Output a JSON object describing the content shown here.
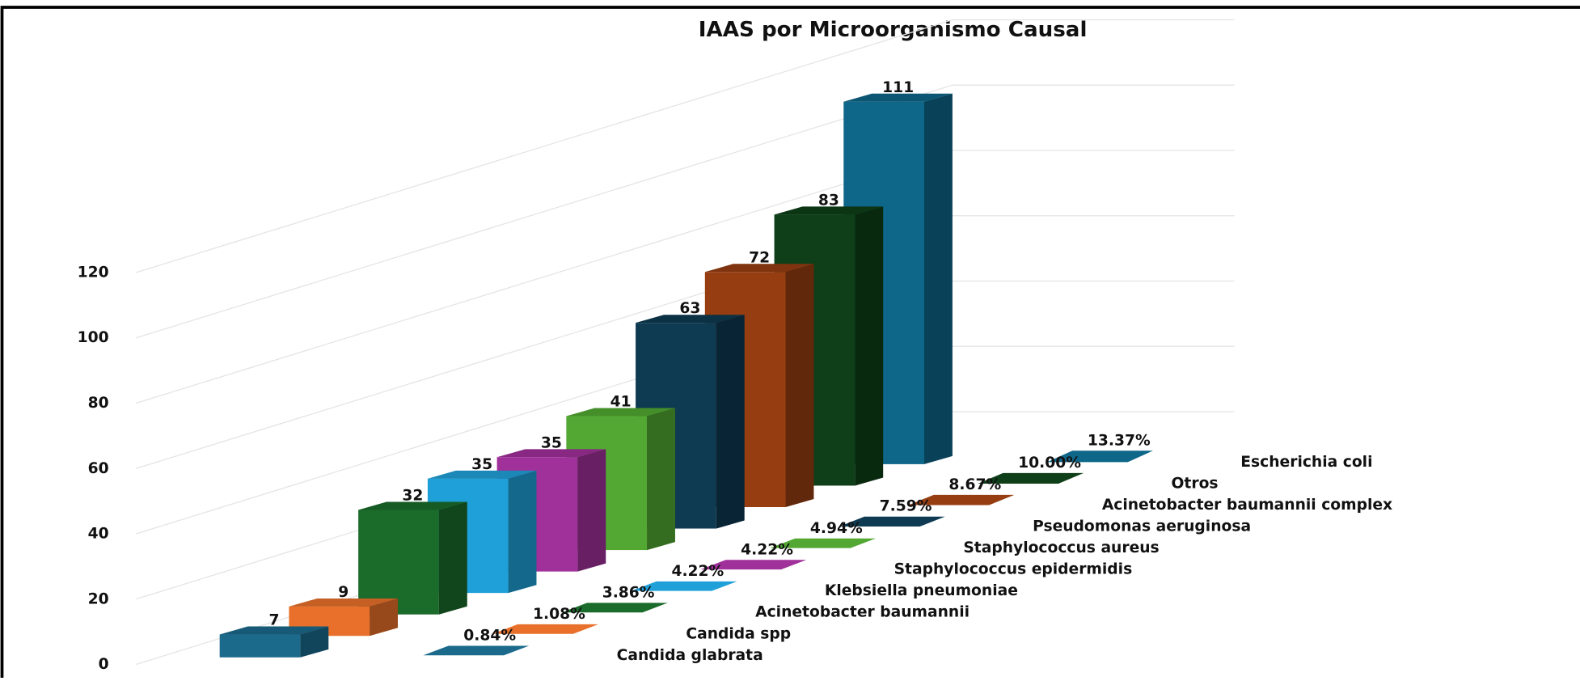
{
  "chart_data": {
    "type": "bar3d",
    "title": "IAAS por Microorganismo Causal",
    "categories": [
      "Candida glabrata",
      "Candida spp",
      "Acinetobacter baumannii",
      "Klebsiella pneumoniae",
      "Staphylococcus epidermidis",
      "Staphylococcus aureus",
      "Pseudomonas aeruginosa",
      "Acinetobacter baumannii complex",
      "Otros",
      "Escherichia coli"
    ],
    "series": [
      {
        "values": [
          7,
          9,
          32,
          35,
          35,
          41,
          63,
          72,
          83,
          111
        ],
        "colors": [
          "#1b6a8c",
          "#e8702a",
          "#1b6b2b",
          "#20a0d8",
          "#a0309a",
          "#52a832",
          "#0e3a52",
          "#963e12",
          "#0f3f18",
          "#0e6688"
        ]
      },
      {
        "values": [
          0.84,
          1.08,
          3.86,
          4.22,
          4.22,
          4.94,
          7.59,
          8.67,
          10.0,
          13.37
        ],
        "value_labels": [
          "0.84%",
          "1.08%",
          "3.86%",
          "4.22%",
          "4.22%",
          "4.94%",
          "7.59%",
          "8.67%",
          "10.00%",
          "13.37%"
        ],
        "colors": [
          "#1b6a8c",
          "#e8702a",
          "#1b6b2b",
          "#20a0d8",
          "#a0309a",
          "#52a832",
          "#0e3a52",
          "#963e12",
          "#0f3f18",
          "#0e6688"
        ]
      }
    ],
    "ylim": [
      0,
      120
    ],
    "yticks": [
      0,
      20,
      40,
      60,
      80,
      100,
      120
    ],
    "grid": true
  }
}
